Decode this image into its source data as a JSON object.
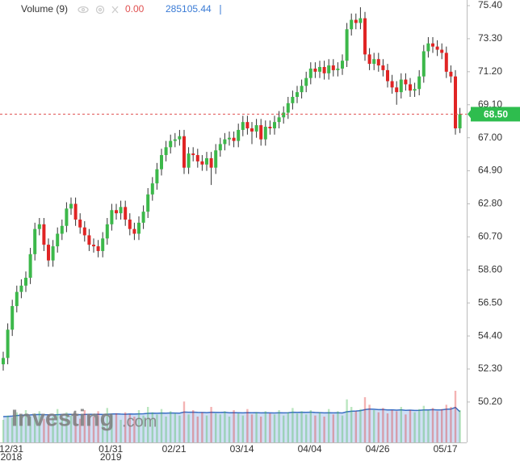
{
  "chart_data": {
    "type": "candlestick",
    "header": {
      "name": "Volume (9)",
      "value": "0.00",
      "ma": "285105.44"
    },
    "watermark": {
      "main": "Investing",
      "suffix": ".com"
    },
    "up_color": "#3cb84a",
    "down_color": "#e02424",
    "volume_ma_color": "#3a6fc4",
    "ylim": [
      47.63,
      75.76
    ],
    "yticks": [
      {
        "value": 75.4,
        "label": "75.40"
      },
      {
        "value": 73.3,
        "label": "73.30"
      },
      {
        "value": 71.2,
        "label": "71.20"
      },
      {
        "value": 69.1,
        "label": "69.10"
      },
      {
        "value": 67,
        "label": "67.00"
      },
      {
        "value": 64.9,
        "label": "64.90"
      },
      {
        "value": 62.8,
        "label": "62.80"
      },
      {
        "value": 60.7,
        "label": "60.70"
      },
      {
        "value": 58.6,
        "label": "58.60"
      },
      {
        "value": 56.5,
        "label": "56.50"
      },
      {
        "value": 54.4,
        "label": "54.40"
      },
      {
        "value": 52.3,
        "label": "52.30"
      },
      {
        "value": 50.2,
        "label": "50.20"
      }
    ],
    "last_price": {
      "value": 68.5,
      "label": "68.50"
    },
    "vlim": [
      0,
      600000
    ],
    "categories": [
      "12/31",
      null,
      null,
      null,
      null,
      null,
      null,
      null,
      null,
      null,
      null,
      null,
      null,
      null,
      null,
      null,
      null,
      null,
      null,
      null,
      null,
      null,
      "01/31",
      null,
      null,
      null,
      null,
      null,
      null,
      null,
      null,
      null,
      null,
      null,
      null,
      null,
      "02/21",
      null,
      null,
      null,
      null,
      null,
      null,
      null,
      null,
      null,
      null,
      null,
      null,
      null,
      null,
      "03/14",
      null,
      null,
      null,
      null,
      null,
      null,
      null,
      null,
      null,
      null,
      null,
      null,
      null,
      null,
      "04/04",
      null,
      null,
      null,
      null,
      null,
      null,
      null,
      null,
      null,
      null,
      null,
      null,
      null,
      null,
      "04/26",
      null,
      null,
      null,
      null,
      null,
      null,
      null,
      null,
      null,
      null,
      null,
      null,
      null,
      null,
      "05/17",
      null,
      null,
      null,
      null,
      null
    ],
    "category_years": [
      "2018",
      null,
      null,
      null,
      null,
      null,
      null,
      null,
      null,
      null,
      null,
      null,
      null,
      null,
      null,
      null,
      null,
      null,
      null,
      null,
      null,
      null,
      "2019",
      null,
      null,
      null,
      null,
      null,
      null,
      null,
      null,
      null,
      null,
      null,
      null,
      null,
      null,
      null,
      null,
      null,
      null,
      null,
      null,
      null,
      null,
      null,
      null,
      null,
      null,
      null,
      null,
      null,
      null,
      null,
      null,
      null,
      null,
      null,
      null,
      null,
      null,
      null,
      null,
      null,
      null,
      null,
      null,
      null,
      null,
      null,
      null,
      null,
      null,
      null,
      null,
      null,
      null,
      null,
      null,
      null,
      null,
      null,
      null,
      null,
      null,
      null,
      null,
      null,
      null,
      null,
      null,
      null,
      null,
      null,
      null,
      null,
      null,
      null,
      null,
      null,
      null,
      null
    ],
    "open": [
      52.6,
      53.0,
      54.8,
      56.3,
      57.2,
      57.6,
      58.1,
      59.6,
      61.2,
      61.5,
      60.2,
      59.2,
      60.1,
      60.9,
      61.4,
      62.5,
      62.8,
      61.8,
      61.3,
      60.8,
      60.2,
      60.1,
      59.8,
      60.6,
      61.5,
      62.4,
      62.2,
      62.6,
      61.8,
      61.2,
      60.9,
      61.6,
      62.3,
      63.4,
      64.1,
      65.0,
      65.9,
      66.4,
      66.8,
      66.9,
      67.1,
      65.1,
      66.0,
      65.9,
      65.5,
      65.3,
      65.7,
      65.1,
      66.2,
      66.6,
      66.9,
      67.0,
      66.8,
      67.5,
      68.0,
      67.6,
      67.4,
      67.8,
      66.9,
      67.7,
      67.6,
      68.0,
      68.3,
      68.6,
      69.2,
      69.6,
      69.9,
      70.3,
      70.8,
      71.4,
      71.2,
      71.5,
      71.1,
      71.6,
      71.3,
      71.4,
      71.9,
      73.9,
      74.5,
      74.3,
      74.6,
      72.3,
      71.7,
      72.0,
      71.6,
      71.3,
      70.6,
      70.2,
      69.9,
      70.7,
      70.4,
      70.0,
      70.1,
      70.9,
      72.5,
      73.0,
      72.8,
      72.6,
      72.4,
      71.2,
      70.9,
      67.6
    ],
    "high": [
      53.4,
      55.2,
      56.7,
      57.6,
      58.0,
      58.5,
      60.0,
      61.6,
      61.9,
      61.9,
      60.6,
      60.5,
      61.3,
      61.8,
      62.9,
      63.2,
      63.2,
      62.2,
      61.7,
      61.2,
      60.6,
      60.5,
      61.0,
      61.9,
      62.8,
      62.8,
      63.0,
      63.0,
      62.2,
      61.6,
      62.0,
      62.7,
      63.8,
      64.5,
      65.4,
      66.3,
      66.8,
      67.2,
      67.3,
      67.5,
      67.5,
      66.4,
      66.4,
      66.3,
      65.9,
      66.1,
      66.1,
      66.6,
      67.0,
      67.3,
      67.4,
      67.4,
      67.9,
      68.4,
      68.4,
      68.0,
      68.2,
      68.2,
      68.1,
      68.1,
      68.4,
      68.7,
      69.0,
      69.6,
      70.0,
      70.3,
      70.7,
      71.2,
      71.8,
      71.8,
      71.9,
      71.9,
      72.0,
      72.0,
      71.8,
      72.3,
      74.3,
      74.9,
      74.9,
      75.3,
      75.0,
      72.7,
      72.4,
      72.4,
      72.0,
      71.7,
      71.0,
      70.6,
      71.1,
      71.1,
      70.8,
      70.5,
      71.3,
      72.9,
      73.4,
      73.4,
      73.2,
      73.0,
      72.8,
      71.6,
      71.3,
      68.9
    ],
    "low": [
      52.2,
      52.6,
      54.4,
      55.9,
      56.8,
      57.2,
      57.7,
      59.2,
      60.8,
      59.8,
      58.8,
      58.8,
      59.7,
      60.5,
      61.0,
      62.1,
      61.4,
      60.9,
      60.4,
      59.8,
      59.7,
      59.4,
      59.4,
      60.2,
      61.1,
      61.8,
      61.8,
      61.4,
      60.8,
      60.5,
      60.5,
      61.2,
      61.9,
      63.0,
      63.7,
      64.6,
      65.5,
      66.0,
      66.4,
      66.5,
      64.7,
      64.7,
      65.5,
      65.1,
      64.9,
      64.9,
      64.0,
      64.7,
      65.8,
      66.2,
      66.5,
      66.4,
      66.4,
      67.1,
      67.2,
      66.6,
      67.0,
      66.5,
      66.5,
      67.2,
      67.2,
      67.6,
      67.9,
      68.2,
      68.8,
      69.2,
      69.5,
      69.9,
      70.4,
      70.8,
      70.8,
      70.7,
      70.7,
      70.9,
      70.9,
      71.0,
      71.5,
      73.5,
      73.9,
      73.9,
      71.9,
      71.3,
      71.3,
      71.2,
      70.9,
      70.2,
      69.8,
      69.1,
      69.5,
      70.0,
      69.6,
      69.6,
      69.7,
      70.5,
      72.1,
      72.4,
      72.2,
      72.0,
      70.8,
      70.5,
      67.2,
      67.3
    ],
    "close": [
      53.0,
      54.8,
      56.3,
      57.2,
      57.6,
      58.1,
      59.6,
      61.2,
      61.5,
      60.2,
      59.2,
      60.1,
      60.9,
      61.4,
      62.5,
      62.8,
      61.8,
      61.3,
      60.8,
      60.2,
      60.1,
      59.8,
      60.6,
      61.5,
      62.4,
      62.2,
      62.6,
      61.8,
      61.2,
      60.9,
      61.6,
      62.3,
      63.4,
      64.1,
      65.0,
      65.9,
      66.4,
      66.8,
      66.9,
      67.1,
      65.1,
      66.0,
      65.9,
      65.5,
      65.3,
      65.7,
      65.1,
      66.2,
      66.6,
      66.9,
      67.0,
      66.8,
      67.5,
      68.0,
      67.6,
      67.4,
      67.8,
      66.9,
      67.7,
      67.6,
      68.0,
      68.3,
      68.6,
      69.2,
      69.6,
      69.9,
      70.3,
      70.8,
      71.4,
      71.2,
      71.5,
      71.1,
      71.6,
      71.3,
      71.4,
      71.9,
      73.9,
      74.5,
      74.3,
      74.6,
      72.3,
      71.7,
      72.0,
      71.6,
      71.3,
      70.6,
      70.2,
      69.9,
      70.7,
      70.4,
      70.0,
      70.1,
      70.9,
      72.5,
      73.0,
      72.8,
      72.6,
      72.4,
      71.2,
      70.9,
      67.6,
      68.5
    ],
    "volume": [
      210000,
      250000,
      230000,
      280000,
      260000,
      300000,
      240000,
      270000,
      290000,
      220000,
      260000,
      240000,
      310000,
      230000,
      280000,
      250000,
      270000,
      220000,
      300000,
      260000,
      240000,
      290000,
      230000,
      320000,
      250000,
      270000,
      210000,
      280000,
      260000,
      240000,
      300000,
      250000,
      330000,
      280000,
      260000,
      310000,
      240000,
      290000,
      270000,
      250000,
      380000,
      260000,
      300000,
      240000,
      280000,
      250000,
      330000,
      270000,
      260000,
      290000,
      240000,
      300000,
      270000,
      250000,
      310000,
      260000,
      280000,
      240000,
      290000,
      270000,
      260000,
      300000,
      250000,
      280000,
      320000,
      270000,
      290000,
      260000,
      300000,
      250000,
      280000,
      240000,
      310000,
      260000,
      290000,
      250000,
      400000,
      330000,
      290000,
      310000,
      420000,
      350000,
      300000,
      280000,
      320000,
      270000,
      300000,
      290000,
      330000,
      260000,
      300000,
      280000,
      310000,
      340000,
      300000,
      320000,
      290000,
      310000,
      350000,
      330000,
      480000,
      300000
    ],
    "volume_ma": [
      240000,
      242000,
      245000,
      250000,
      252000,
      255000,
      256000,
      258000,
      260000,
      258000,
      257000,
      256000,
      258000,
      260000,
      262000,
      261000,
      260000,
      258000,
      260000,
      262000,
      261000,
      262000,
      260000,
      262000,
      264000,
      265000,
      263000,
      262000,
      264000,
      263000,
      265000,
      266000,
      270000,
      272000,
      271000,
      273000,
      272000,
      274000,
      273000,
      272000,
      282000,
      280000,
      281000,
      279000,
      278000,
      277000,
      280000,
      279000,
      278000,
      280000,
      276000,
      277000,
      276000,
      275000,
      277000,
      276000,
      277000,
      275000,
      276000,
      275000,
      274000,
      276000,
      275000,
      276000,
      280000,
      279000,
      280000,
      279000,
      281000,
      278000,
      277000,
      275000,
      276000,
      275000,
      276000,
      274000,
      285000,
      290000,
      292000,
      295000,
      305000,
      310000,
      308000,
      305000,
      306000,
      302000,
      303000,
      300000,
      303000,
      298000,
      300000,
      297000,
      298000,
      302000,
      302000,
      305000,
      302000,
      303000,
      308000,
      310000,
      325000,
      285105.44
    ]
  }
}
